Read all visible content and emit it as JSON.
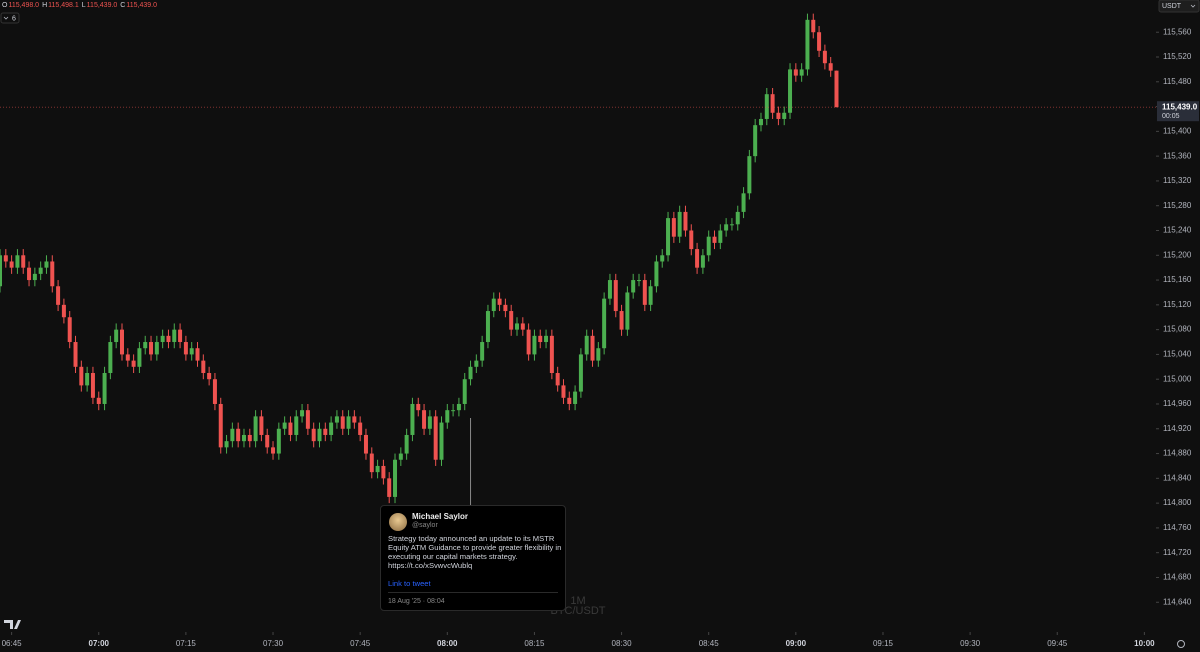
{
  "chart_data": {
    "type": "candlestick",
    "ohlc_legend": [
      {
        "label": "O",
        "value": "115,498.0"
      },
      {
        "label": "H",
        "value": "115,498.1"
      },
      {
        "label": "L",
        "value": "115,439.0"
      },
      {
        "label": "C",
        "value": "115,439.0"
      }
    ],
    "indicator_count": "6",
    "currency": "USDT",
    "interval": "1M",
    "symbol": "BTC/USDT",
    "last_price": {
      "value": 115439,
      "label": "115,439.0"
    },
    "countdown": "00:05",
    "up_color": "#4caf50",
    "down_color": "#ef5350",
    "x": [
      "06:43",
      "06:44",
      "06:45",
      "06:46",
      "06:47",
      "06:48",
      "06:49",
      "06:50",
      "06:51",
      "06:52",
      "06:53",
      "06:54",
      "06:55",
      "06:56",
      "06:57",
      "06:58",
      "06:59",
      "07:00",
      "07:01",
      "07:02",
      "07:03",
      "07:04",
      "07:05",
      "07:06",
      "07:07",
      "07:08",
      "07:09",
      "07:10",
      "07:11",
      "07:12",
      "07:13",
      "07:14",
      "07:15",
      "07:16",
      "07:17",
      "07:18",
      "07:19",
      "07:20",
      "07:21",
      "07:22",
      "07:23",
      "07:24",
      "07:25",
      "07:26",
      "07:27",
      "07:28",
      "07:29",
      "07:30",
      "07:31",
      "07:32",
      "07:33",
      "07:34",
      "07:35",
      "07:36",
      "07:37",
      "07:38",
      "07:39",
      "07:40",
      "07:41",
      "07:42",
      "07:43",
      "07:44",
      "07:45",
      "07:46",
      "07:47",
      "07:48",
      "07:49",
      "07:50",
      "07:51",
      "07:52",
      "07:53",
      "07:54",
      "07:55",
      "07:56",
      "07:57",
      "07:58",
      "07:59",
      "08:00",
      "08:01",
      "08:02",
      "08:03",
      "08:04",
      "08:05",
      "08:06",
      "08:07",
      "08:08",
      "08:09",
      "08:10",
      "08:11",
      "08:12",
      "08:13",
      "08:14",
      "08:15",
      "08:16",
      "08:17",
      "08:18",
      "08:19",
      "08:20",
      "08:21",
      "08:22",
      "08:23",
      "08:24",
      "08:25",
      "08:26",
      "08:27",
      "08:28",
      "08:29",
      "08:30",
      "08:31",
      "08:32",
      "08:33",
      "08:34",
      "08:35",
      "08:36",
      "08:37",
      "08:38",
      "08:39",
      "08:40",
      "08:41",
      "08:42",
      "08:43",
      "08:44",
      "08:45",
      "08:46",
      "08:47",
      "08:48",
      "08:49",
      "08:50",
      "08:51",
      "08:52",
      "08:53",
      "08:54",
      "08:55",
      "08:56",
      "08:57",
      "08:58",
      "08:59",
      "09:00",
      "09:01",
      "09:02",
      "09:03",
      "09:04",
      "09:05",
      "09:06",
      "09:07"
    ],
    "open": [
      115150,
      115200,
      115190,
      115180,
      115200,
      115180,
      115160,
      115170,
      115180,
      115190,
      115150,
      115120,
      115100,
      115060,
      115020,
      114990,
      115010,
      114970,
      114960,
      115010,
      115060,
      115080,
      115040,
      115030,
      115020,
      115050,
      115060,
      115040,
      115060,
      115070,
      115060,
      115080,
      115060,
      115040,
      115050,
      115030,
      115010,
      115000,
      114960,
      114890,
      114900,
      114920,
      114900,
      114910,
      114900,
      114940,
      114910,
      114890,
      114880,
      114920,
      114930,
      114910,
      114940,
      114950,
      114920,
      114900,
      114920,
      114910,
      114930,
      114940,
      114920,
      114940,
      114930,
      114910,
      114880,
      114850,
      114860,
      114840,
      114810,
      114870,
      114880,
      114910,
      114960,
      114950,
      114920,
      114940,
      114870,
      114930,
      114950,
      114950,
      114960,
      115000,
      115020,
      115030,
      115060,
      115110,
      115130,
      115120,
      115110,
      115080,
      115090,
      115080,
      115040,
      115070,
      115060,
      115070,
      115010,
      114990,
      114970,
      114960,
      114980,
      115040,
      115070,
      115030,
      115050,
      115130,
      115160,
      115110,
      115080,
      115140,
      115160,
      115160,
      115120,
      115150,
      115190,
      115200,
      115260,
      115230,
      115270,
      115240,
      115210,
      115180,
      115200,
      115230,
      115220,
      115240,
      115250,
      115250,
      115270,
      115300,
      115360,
      115410,
      115420,
      115460,
      115430,
      115420,
      115430,
      115500,
      115490,
      115500,
      115580,
      115560,
      115530,
      115510,
      115498
    ],
    "high": [
      115210,
      115210,
      115200,
      115210,
      115210,
      115190,
      115180,
      115190,
      115200,
      115200,
      115160,
      115130,
      115110,
      115070,
      115030,
      115020,
      115020,
      114980,
      115020,
      115070,
      115090,
      115090,
      115050,
      115040,
      115060,
      115070,
      115070,
      115070,
      115080,
      115080,
      115090,
      115090,
      115070,
      115060,
      115060,
      115040,
      115020,
      115010,
      114970,
      114910,
      114930,
      114930,
      114920,
      114920,
      114950,
      114950,
      114920,
      114900,
      114930,
      114940,
      114940,
      114950,
      114960,
      114960,
      114930,
      114930,
      114930,
      114940,
      114950,
      114950,
      114950,
      114950,
      114940,
      114920,
      114890,
      114870,
      114870,
      114850,
      114880,
      114890,
      114920,
      114970,
      114970,
      114960,
      114950,
      114950,
      114940,
      114960,
      114960,
      114970,
      115010,
      115030,
      115040,
      115070,
      115120,
      115140,
      115140,
      115130,
      115120,
      115100,
      115100,
      115090,
      115080,
      115080,
      115080,
      115080,
      115020,
      115000,
      114980,
      114990,
      115050,
      115080,
      115080,
      115060,
      115140,
      115170,
      115170,
      115120,
      115150,
      115170,
      115170,
      115170,
      115160,
      115200,
      115210,
      115270,
      115270,
      115280,
      115280,
      115250,
      115220,
      115210,
      115240,
      115240,
      115250,
      115260,
      115260,
      115280,
      115310,
      115370,
      115420,
      115430,
      115470,
      115470,
      115440,
      115440,
      115510,
      115510,
      115510,
      115590,
      115590,
      115570,
      115540,
      115520,
      115498.1
    ],
    "low": [
      115140,
      115180,
      115170,
      115170,
      115170,
      115150,
      115150,
      115160,
      115170,
      115140,
      115110,
      115090,
      115050,
      115010,
      114980,
      114980,
      114960,
      114950,
      114950,
      115000,
      115050,
      115030,
      115020,
      115010,
      115010,
      115040,
      115030,
      115030,
      115050,
      115050,
      115050,
      115050,
      115030,
      115030,
      115020,
      115000,
      114990,
      114950,
      114880,
      114880,
      114890,
      114890,
      114890,
      114890,
      114890,
      114900,
      114880,
      114870,
      114870,
      114910,
      114900,
      114900,
      114930,
      114910,
      114890,
      114890,
      114900,
      114900,
      114920,
      114910,
      114910,
      114920,
      114900,
      114870,
      114840,
      114840,
      114830,
      114800,
      114800,
      114860,
      114870,
      114900,
      114940,
      114910,
      114910,
      114860,
      114860,
      114920,
      114940,
      114940,
      114950,
      114990,
      115010,
      115020,
      115050,
      115100,
      115110,
      115100,
      115070,
      115070,
      115070,
      115030,
      115030,
      115050,
      115050,
      115000,
      114980,
      114960,
      114950,
      114950,
      114970,
      115030,
      115020,
      115020,
      115040,
      115120,
      115100,
      115070,
      115070,
      115130,
      115150,
      115110,
      115110,
      115140,
      115180,
      115190,
      115220,
      115220,
      115230,
      115200,
      115170,
      115170,
      115190,
      115210,
      115210,
      115230,
      115240,
      115240,
      115260,
      115290,
      115350,
      115400,
      115410,
      115420,
      115410,
      115410,
      115420,
      115480,
      115480,
      115490,
      115550,
      115520,
      115500,
      115488,
      115439
    ],
    "close": [
      115200,
      115190,
      115180,
      115200,
      115180,
      115160,
      115170,
      115180,
      115190,
      115150,
      115120,
      115100,
      115060,
      115020,
      114990,
      115010,
      114970,
      114960,
      115010,
      115060,
      115080,
      115040,
      115030,
      115020,
      115050,
      115060,
      115040,
      115060,
      115070,
      115060,
      115080,
      115060,
      115040,
      115050,
      115030,
      115010,
      115000,
      114960,
      114890,
      114900,
      114920,
      114900,
      114910,
      114900,
      114940,
      114910,
      114890,
      114880,
      114920,
      114930,
      114910,
      114940,
      114950,
      114920,
      114900,
      114920,
      114910,
      114930,
      114940,
      114920,
      114940,
      114930,
      114910,
      114880,
      114850,
      114860,
      114840,
      114810,
      114870,
      114880,
      114910,
      114960,
      114950,
      114920,
      114940,
      114870,
      114930,
      114950,
      114950,
      114960,
      115000,
      115020,
      115030,
      115060,
      115110,
      115130,
      115120,
      115110,
      115080,
      115090,
      115080,
      115040,
      115070,
      115060,
      115070,
      115010,
      114990,
      114970,
      114960,
      114980,
      115040,
      115070,
      115030,
      115050,
      115130,
      115160,
      115110,
      115080,
      115140,
      115160,
      115160,
      115120,
      115150,
      115190,
      115200,
      115260,
      115230,
      115270,
      115240,
      115210,
      115180,
      115200,
      115230,
      115220,
      115240,
      115250,
      115250,
      115270,
      115300,
      115360,
      115410,
      115420,
      115460,
      115430,
      115420,
      115430,
      115500,
      115490,
      115500,
      115580,
      115560,
      115530,
      115510,
      115498,
      115439
    ],
    "ylim": [
      114592,
      115612
    ],
    "yticks": [
      {
        "value": 114640,
        "label": "114,640"
      },
      {
        "value": 114680,
        "label": "114,680"
      },
      {
        "value": 114720,
        "label": "114,720"
      },
      {
        "value": 114760,
        "label": "114,760"
      },
      {
        "value": 114800,
        "label": "114,800"
      },
      {
        "value": 114840,
        "label": "114,840"
      },
      {
        "value": 114880,
        "label": "114,880"
      },
      {
        "value": 114920,
        "label": "114,920"
      },
      {
        "value": 114960,
        "label": "114,960"
      },
      {
        "value": 115000,
        "label": "115,000"
      },
      {
        "value": 115040,
        "label": "115,040"
      },
      {
        "value": 115080,
        "label": "115,080"
      },
      {
        "value": 115120,
        "label": "115,120"
      },
      {
        "value": 115160,
        "label": "115,160"
      },
      {
        "value": 115200,
        "label": "115,200"
      },
      {
        "value": 115240,
        "label": "115,240"
      },
      {
        "value": 115280,
        "label": "115,280"
      },
      {
        "value": 115320,
        "label": "115,320"
      },
      {
        "value": 115360,
        "label": "115,360"
      },
      {
        "value": 115400,
        "label": "115,400"
      },
      {
        "value": 115440,
        "label": "115,440"
      },
      {
        "value": 115480,
        "label": "115,480"
      },
      {
        "value": 115520,
        "label": "115,520"
      },
      {
        "value": 115560,
        "label": "115,560"
      }
    ],
    "xlim": [
      "06:43",
      "10:02"
    ],
    "xticks": [
      "06:45",
      "07:00",
      "07:15",
      "07:30",
      "07:45",
      "08:00",
      "08:15",
      "08:30",
      "08:45",
      "09:00",
      "09:15",
      "09:30",
      "09:45",
      "10:00"
    ],
    "tweet": {
      "author": "Michael Saylor",
      "handle": "@saylor",
      "text": "Strategy today announced an update to its MSTR Equity ATM Guidance to provide greater flexibility in executing our capital markets strategy. https://t.co/xSvwvcWublq",
      "link": "Link to tweet",
      "date": "18 Aug '25 · 08:04",
      "time": "08:04"
    }
  }
}
